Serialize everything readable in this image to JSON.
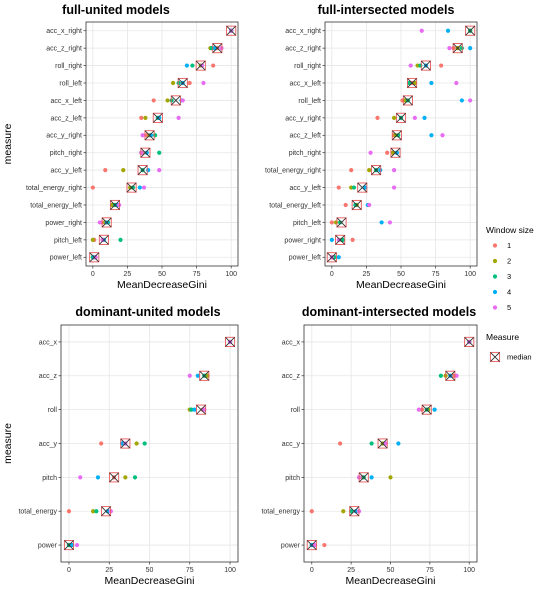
{
  "window_colors": {
    "1": "#f8766d",
    "2": "#a3a500",
    "3": "#00bf7d",
    "4": "#00b0f6",
    "5": "#e76bf3"
  },
  "median_color": "#e8595a",
  "legend": {
    "window_title": "Window size",
    "window_entries": [
      "1",
      "2",
      "3",
      "4",
      "5"
    ],
    "measure_title": "Measure",
    "measure_entry": "median"
  },
  "chart_data": [
    {
      "type": "scatter",
      "title": "full-united models",
      "xlabel": "MeanDecreaseGini",
      "ylabel": "measure",
      "xlim": [
        0,
        100
      ],
      "xticks": [
        "0",
        "25",
        "50",
        "75",
        "100"
      ],
      "grid": true,
      "categories": [
        "acc_x_right",
        "acc_z_right",
        "roll_right",
        "roll_left",
        "acc_x_left",
        "acc_z_left",
        "acc_y_right",
        "pitch_right",
        "acc_y_left",
        "total_energy_right",
        "total_energy_left",
        "power_right",
        "pitch_left",
        "power_left"
      ],
      "series": [
        {
          "name": "1",
          "values": [
            100,
            90,
            87,
            70,
            44,
            35,
            39,
            36,
            9,
            0,
            16,
            7,
            1,
            2
          ]
        },
        {
          "name": "2",
          "values": [
            100,
            85,
            78,
            58,
            54,
            38,
            41,
            35,
            22,
            27,
            14,
            9,
            0,
            0
          ]
        },
        {
          "name": "3",
          "values": [
            100,
            86,
            72,
            62,
            57,
            47,
            45,
            48,
            36,
            29,
            16,
            11,
            20,
            0
          ]
        },
        {
          "name": "4",
          "values": [
            100,
            88,
            68,
            65,
            64,
            48,
            42,
            39,
            40,
            34,
            18,
            10,
            8,
            1
          ]
        },
        {
          "name": "5",
          "values": [
            100,
            93,
            79,
            80,
            65,
            62,
            36,
            35,
            48,
            37,
            19,
            5,
            7,
            2
          ]
        }
      ],
      "median": [
        100,
        90,
        78,
        65,
        60,
        47,
        41,
        38,
        36,
        28,
        16,
        10,
        8,
        1
      ]
    },
    {
      "type": "scatter",
      "title": "full-intersected models",
      "xlabel": "MeanDecreaseGini",
      "ylabel": "",
      "xlim": [
        0,
        100
      ],
      "xticks": [
        "0",
        "25",
        "50",
        "75",
        "100"
      ],
      "grid": true,
      "categories": [
        "acc_x_right",
        "acc_z_right",
        "roll_right",
        "acc_x_left",
        "roll_left",
        "acc_y_right",
        "acc_z_left",
        "pitch_right",
        "total_energy_right",
        "acc_y_left",
        "total_energy_left",
        "pitch_left",
        "power_right",
        "power_left"
      ],
      "series": [
        {
          "name": "1",
          "values": [
            100,
            88,
            79,
            58,
            51,
            33,
            45,
            40,
            14,
            5,
            10,
            0,
            15,
            0
          ]
        },
        {
          "name": "2",
          "values": [
            100,
            91,
            62,
            60,
            53,
            45,
            46,
            44,
            27,
            14,
            18,
            3,
            7,
            1
          ]
        },
        {
          "name": "3",
          "values": [
            100,
            94,
            64,
            56,
            55,
            50,
            48,
            47,
            32,
            16,
            17,
            6,
            8,
            2
          ]
        },
        {
          "name": "4",
          "values": [
            84,
            100,
            68,
            72,
            94,
            67,
            72,
            47,
            35,
            24,
            26,
            36,
            0,
            5
          ]
        },
        {
          "name": "5",
          "values": [
            65,
            85,
            57,
            90,
            100,
            60,
            80,
            28,
            45,
            45,
            27,
            42,
            5,
            0
          ]
        }
      ],
      "median": [
        100,
        91,
        68,
        58,
        55,
        50,
        47,
        46,
        32,
        22,
        18,
        7,
        6,
        0
      ]
    },
    {
      "type": "scatter",
      "title": "dominant-united models",
      "xlabel": "MeanDecreaseGini",
      "ylabel": "measure",
      "xlim": [
        0,
        100
      ],
      "xticks": [
        "0",
        "25",
        "50",
        "75",
        "100"
      ],
      "grid": true,
      "categories": [
        "acc_x",
        "acc_z",
        "roll",
        "acc_y",
        "pitch",
        "total_energy",
        "power"
      ],
      "series": [
        {
          "name": "1",
          "values": [
            100,
            85,
            83,
            20,
            28,
            0,
            0
          ]
        },
        {
          "name": "2",
          "values": [
            100,
            86,
            75,
            42,
            35,
            15,
            1
          ]
        },
        {
          "name": "3",
          "values": [
            100,
            84,
            76,
            47,
            41,
            17,
            0
          ]
        },
        {
          "name": "4",
          "values": [
            100,
            80,
            78,
            33,
            18,
            24,
            2
          ]
        },
        {
          "name": "5",
          "values": [
            100,
            75,
            84,
            35,
            7,
            26,
            5
          ]
        }
      ],
      "median": [
        100,
        84,
        82,
        35,
        28,
        23,
        0
      ]
    },
    {
      "type": "scatter",
      "title": "dominant-intersected models",
      "xlabel": "MeanDecreaseGini",
      "ylabel": "",
      "xlim": [
        0,
        100
      ],
      "xticks": [
        "0",
        "25",
        "50",
        "75",
        "100"
      ],
      "grid": true,
      "categories": [
        "acc_x",
        "acc_z",
        "roll",
        "acc_y",
        "pitch",
        "total_energy",
        "power"
      ],
      "series": [
        {
          "name": "1",
          "values": [
            100,
            90,
            70,
            18,
            32,
            0,
            8
          ]
        },
        {
          "name": "2",
          "values": [
            100,
            85,
            74,
            45,
            50,
            20,
            0
          ]
        },
        {
          "name": "3",
          "values": [
            100,
            82,
            73,
            38,
            33,
            25,
            1
          ]
        },
        {
          "name": "4",
          "values": [
            100,
            88,
            78,
            55,
            38,
            28,
            0
          ]
        },
        {
          "name": "5",
          "values": [
            100,
            92,
            68,
            47,
            30,
            30,
            2
          ]
        }
      ],
      "median": [
        100,
        88,
        73,
        45,
        33,
        27,
        0
      ]
    }
  ]
}
